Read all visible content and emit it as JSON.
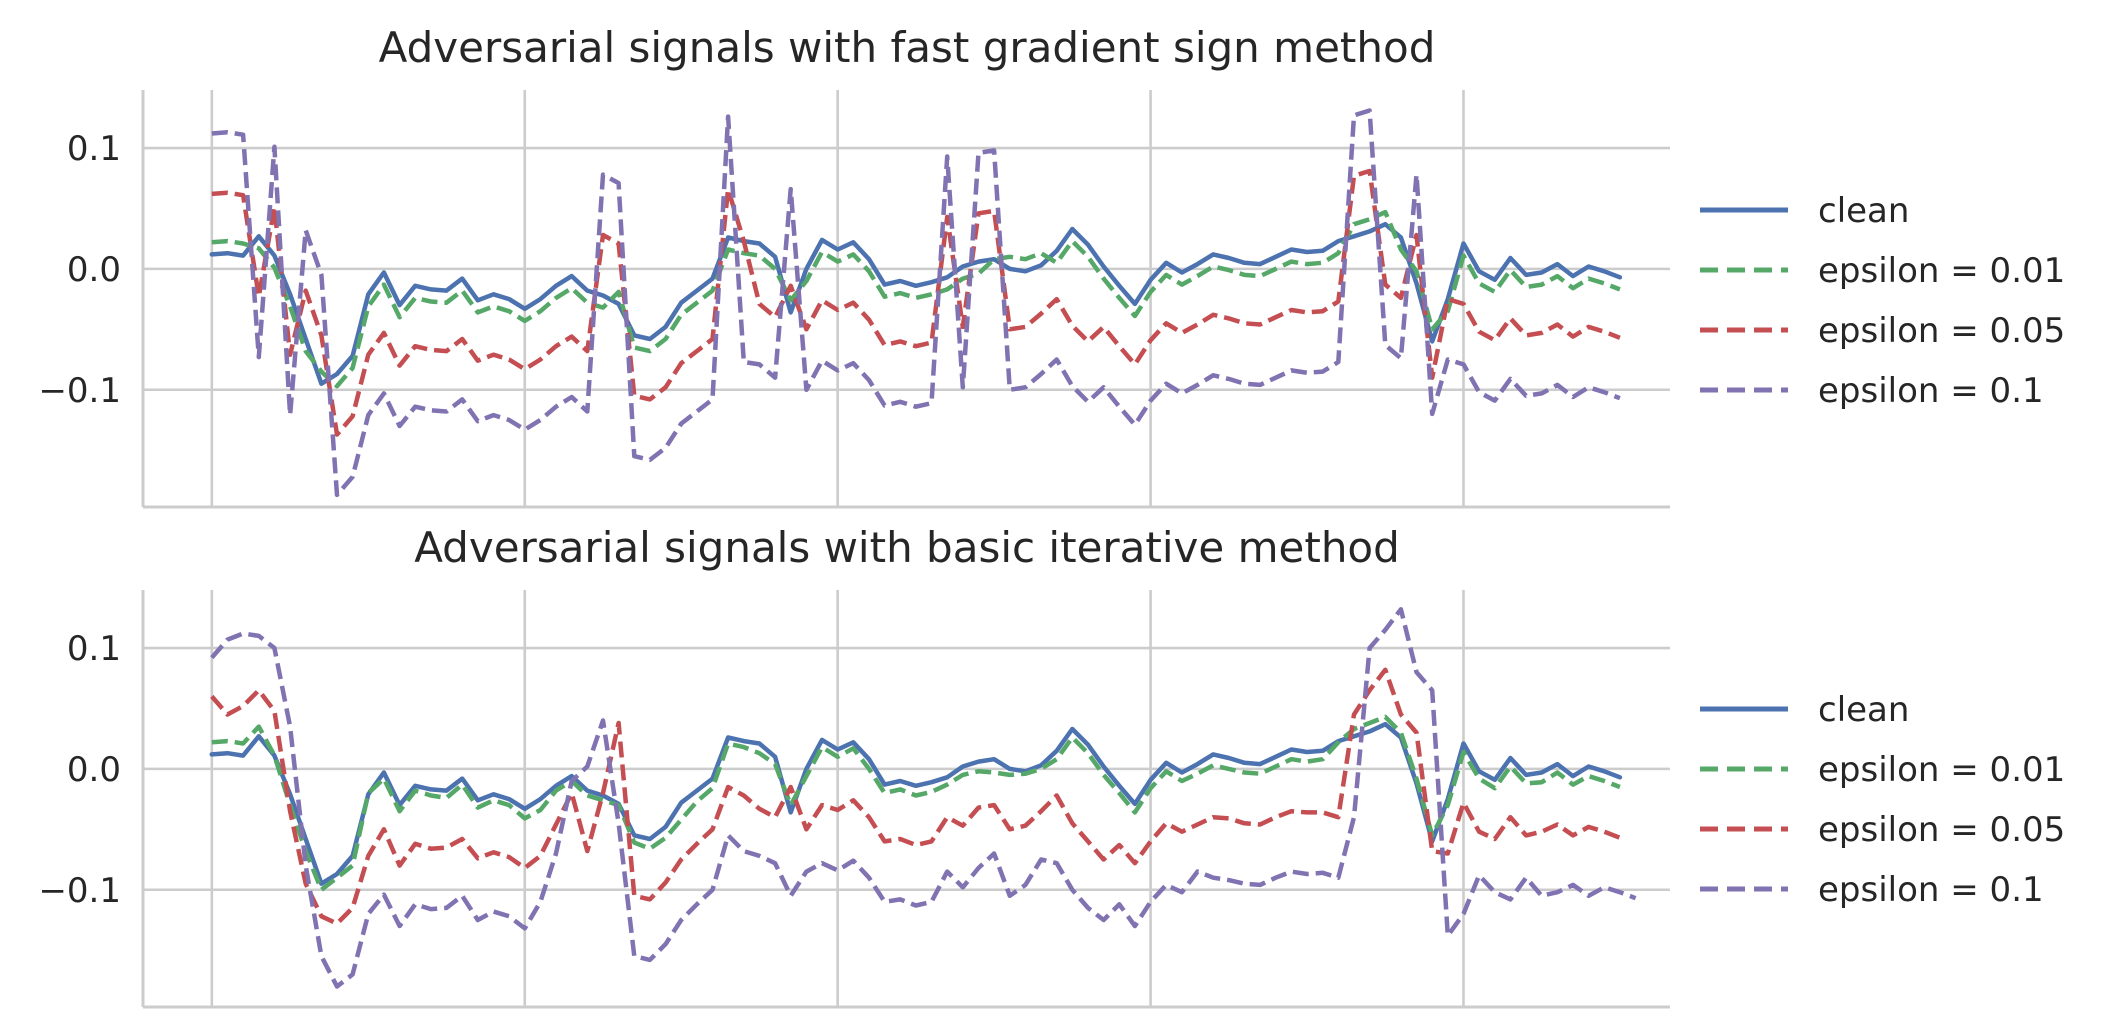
{
  "chart_data": [
    {
      "type": "line",
      "title": "Adversarial signals with fast gradient sign method",
      "xlabel": "",
      "ylabel": "",
      "xlim": [
        -2.2,
        46.6
      ],
      "ylim": [
        -0.197,
        0.148
      ],
      "grid": true,
      "xticks": [
        0,
        10,
        20,
        30,
        40
      ],
      "yticks": [
        -0.1,
        0.0,
        0.1
      ],
      "ytick_labels": [
        "−0.1",
        "0.0",
        "0.1"
      ],
      "legend_position": "center-right",
      "series": [
        {
          "name": "clean",
          "label": "clean",
          "color": "#4c72b0",
          "style": "solid",
          "values": [
            0.012,
            0.013,
            0.011,
            0.027,
            0.011,
            -0.021,
            -0.058,
            -0.095,
            -0.087,
            -0.072,
            -0.021,
            -0.003,
            -0.03,
            -0.014,
            -0.017,
            -0.018,
            -0.008,
            -0.026,
            -0.021,
            -0.025,
            -0.033,
            -0.025,
            -0.014,
            -0.006,
            -0.018,
            -0.022,
            -0.029,
            -0.055,
            -0.058,
            -0.048,
            -0.028,
            -0.018,
            -0.008,
            0.026,
            0.023,
            0.021,
            0.01,
            -0.036,
            0.0,
            0.024,
            0.016,
            0.022,
            0.008,
            -0.013,
            -0.01,
            -0.014,
            -0.011,
            -0.007,
            0.002,
            0.006,
            0.008,
            0.0,
            -0.002,
            0.003,
            0.015,
            0.033,
            0.02,
            0.002,
            -0.014,
            -0.029,
            -0.009,
            0.005,
            -0.003,
            0.004,
            0.012,
            0.009,
            0.005,
            0.004,
            0.01,
            0.016,
            0.014,
            0.015,
            0.023,
            0.027,
            0.031,
            0.037,
            0.026,
            -0.012,
            -0.06,
            -0.025,
            0.021,
            -0.002,
            -0.009,
            0.009,
            -0.005,
            -0.003,
            0.004,
            -0.006,
            0.002,
            -0.002,
            -0.007
          ]
        },
        {
          "name": "epsilon = 0.01",
          "label": "epsilon = 0.01",
          "color": "#55a868",
          "style": "dashed",
          "values": [
            0.022,
            0.023,
            0.021,
            0.017,
            0.001,
            -0.031,
            -0.068,
            -0.085,
            -0.097,
            -0.082,
            -0.031,
            -0.013,
            -0.04,
            -0.024,
            -0.027,
            -0.028,
            -0.018,
            -0.036,
            -0.031,
            -0.035,
            -0.043,
            -0.035,
            -0.024,
            -0.016,
            -0.028,
            -0.032,
            -0.019,
            -0.065,
            -0.068,
            -0.058,
            -0.038,
            -0.028,
            -0.018,
            0.016,
            0.013,
            0.011,
            0.0,
            -0.026,
            -0.01,
            0.014,
            0.006,
            0.012,
            -0.002,
            -0.023,
            -0.02,
            -0.024,
            -0.021,
            -0.017,
            -0.008,
            -0.004,
            0.008,
            0.01,
            0.008,
            0.013,
            0.005,
            0.023,
            0.01,
            -0.008,
            -0.024,
            -0.039,
            -0.019,
            -0.005,
            -0.013,
            -0.006,
            0.002,
            -0.001,
            -0.005,
            -0.006,
            0.0,
            0.006,
            0.004,
            0.005,
            0.013,
            0.037,
            0.041,
            0.047,
            0.016,
            -0.002,
            -0.05,
            -0.035,
            0.011,
            -0.012,
            -0.019,
            -0.001,
            -0.015,
            -0.013,
            -0.006,
            -0.016,
            -0.008,
            -0.012,
            -0.017
          ]
        },
        {
          "name": "epsilon = 0.05",
          "label": "epsilon = 0.05",
          "color": "#c44e52",
          "style": "dashed",
          "values": [
            0.062,
            0.063,
            0.061,
            -0.023,
            0.051,
            -0.071,
            -0.018,
            -0.055,
            -0.137,
            -0.122,
            -0.071,
            -0.053,
            -0.08,
            -0.064,
            -0.067,
            -0.068,
            -0.058,
            -0.076,
            -0.071,
            -0.075,
            -0.083,
            -0.075,
            -0.064,
            -0.056,
            -0.068,
            0.028,
            0.021,
            -0.105,
            -0.108,
            -0.098,
            -0.078,
            -0.068,
            -0.058,
            0.066,
            0.023,
            -0.029,
            -0.04,
            -0.014,
            -0.05,
            -0.026,
            -0.034,
            -0.028,
            -0.042,
            -0.063,
            -0.06,
            -0.064,
            -0.061,
            0.043,
            -0.048,
            0.046,
            0.048,
            -0.05,
            -0.048,
            -0.037,
            -0.025,
            -0.047,
            -0.06,
            -0.048,
            -0.064,
            -0.079,
            -0.059,
            -0.045,
            -0.053,
            -0.046,
            -0.038,
            -0.041,
            -0.045,
            -0.046,
            -0.04,
            -0.034,
            -0.036,
            -0.035,
            -0.027,
            0.077,
            0.081,
            -0.013,
            -0.024,
            0.028,
            -0.09,
            -0.025,
            -0.029,
            -0.052,
            -0.059,
            -0.041,
            -0.055,
            -0.053,
            -0.046,
            -0.056,
            -0.048,
            -0.052,
            -0.057
          ]
        },
        {
          "name": "epsilon = 0.1",
          "label": "epsilon = 0.1",
          "color": "#8172b2",
          "style": "dashed",
          "values": [
            0.112,
            0.113,
            0.111,
            -0.073,
            0.101,
            -0.121,
            0.032,
            -0.005,
            -0.187,
            -0.172,
            -0.121,
            -0.103,
            -0.13,
            -0.114,
            -0.117,
            -0.118,
            -0.108,
            -0.126,
            -0.121,
            -0.125,
            -0.133,
            -0.125,
            -0.114,
            -0.106,
            -0.118,
            0.078,
            0.071,
            -0.155,
            -0.158,
            -0.148,
            -0.128,
            -0.118,
            -0.108,
            0.126,
            -0.077,
            -0.079,
            -0.09,
            0.066,
            -0.1,
            -0.076,
            -0.084,
            -0.078,
            -0.092,
            -0.113,
            -0.11,
            -0.114,
            -0.111,
            0.093,
            -0.098,
            0.096,
            0.098,
            -0.1,
            -0.098,
            -0.087,
            -0.075,
            -0.097,
            -0.11,
            -0.098,
            -0.114,
            -0.129,
            -0.109,
            -0.095,
            -0.103,
            -0.096,
            -0.088,
            -0.091,
            -0.095,
            -0.096,
            -0.09,
            -0.084,
            -0.086,
            -0.085,
            -0.077,
            0.127,
            0.131,
            -0.063,
            -0.074,
            0.078,
            -0.12,
            -0.075,
            -0.079,
            -0.102,
            -0.109,
            -0.091,
            -0.105,
            -0.103,
            -0.096,
            -0.106,
            -0.098,
            -0.102,
            -0.107
          ]
        }
      ]
    },
    {
      "type": "line",
      "title": "Adversarial signals with basic iterative method",
      "xlabel": "",
      "ylabel": "",
      "xlim": [
        -2.2,
        46.6
      ],
      "ylim": [
        -0.197,
        0.148
      ],
      "grid": true,
      "xticks": [
        0,
        10,
        20,
        30,
        40
      ],
      "yticks": [
        -0.1,
        0.0,
        0.1
      ],
      "ytick_labels": [
        "−0.1",
        "0.0",
        "0.1"
      ],
      "legend_position": "center-right",
      "series": [
        {
          "name": "clean",
          "label": "clean",
          "color": "#4c72b0",
          "style": "solid",
          "values": [
            0.012,
            0.013,
            0.011,
            0.027,
            0.011,
            -0.021,
            -0.058,
            -0.095,
            -0.087,
            -0.072,
            -0.021,
            -0.003,
            -0.03,
            -0.014,
            -0.017,
            -0.018,
            -0.008,
            -0.026,
            -0.021,
            -0.025,
            -0.033,
            -0.025,
            -0.014,
            -0.006,
            -0.018,
            -0.022,
            -0.029,
            -0.055,
            -0.058,
            -0.048,
            -0.028,
            -0.018,
            -0.008,
            0.026,
            0.023,
            0.021,
            0.01,
            -0.036,
            0.0,
            0.024,
            0.016,
            0.022,
            0.008,
            -0.013,
            -0.01,
            -0.014,
            -0.011,
            -0.007,
            0.002,
            0.006,
            0.008,
            0.0,
            -0.002,
            0.003,
            0.015,
            0.033,
            0.02,
            0.002,
            -0.014,
            -0.029,
            -0.009,
            0.005,
            -0.003,
            0.004,
            0.012,
            0.009,
            0.005,
            0.004,
            0.01,
            0.016,
            0.014,
            0.015,
            0.023,
            0.027,
            0.031,
            0.037,
            0.026,
            -0.012,
            -0.06,
            -0.025,
            0.021,
            -0.002,
            -0.009,
            0.009,
            -0.005,
            -0.003,
            0.004,
            -0.006,
            0.002,
            -0.002,
            -0.007
          ]
        },
        {
          "name": "epsilon = 0.01",
          "label": "epsilon = 0.01",
          "color": "#55a868",
          "style": "dashed",
          "values": [
            0.022,
            0.023,
            0.021,
            0.035,
            0.011,
            -0.03,
            -0.068,
            -0.1,
            -0.09,
            -0.08,
            -0.02,
            -0.008,
            -0.035,
            -0.018,
            -0.022,
            -0.024,
            -0.013,
            -0.032,
            -0.026,
            -0.03,
            -0.041,
            -0.034,
            -0.018,
            -0.01,
            -0.022,
            -0.026,
            -0.03,
            -0.061,
            -0.066,
            -0.057,
            -0.042,
            -0.027,
            -0.016,
            0.021,
            0.018,
            0.013,
            0.004,
            -0.03,
            -0.006,
            0.018,
            0.01,
            0.017,
            0.0,
            -0.02,
            -0.017,
            -0.022,
            -0.019,
            -0.013,
            -0.005,
            -0.002,
            -0.003,
            -0.005,
            -0.004,
            0.0,
            0.008,
            0.026,
            0.013,
            -0.005,
            -0.02,
            -0.036,
            -0.016,
            -0.002,
            -0.01,
            -0.004,
            0.003,
            0.0,
            -0.003,
            -0.004,
            0.002,
            0.008,
            0.006,
            0.008,
            0.022,
            0.033,
            0.038,
            0.043,
            0.03,
            -0.008,
            -0.055,
            -0.03,
            0.014,
            -0.008,
            -0.016,
            0.002,
            -0.012,
            -0.011,
            -0.003,
            -0.013,
            -0.006,
            -0.01,
            -0.015
          ]
        },
        {
          "name": "epsilon = 0.05",
          "label": "epsilon = 0.05",
          "color": "#c44e52",
          "style": "dashed",
          "values": [
            0.06,
            0.045,
            0.052,
            0.065,
            0.048,
            -0.035,
            -0.095,
            -0.122,
            -0.128,
            -0.115,
            -0.072,
            -0.05,
            -0.08,
            -0.062,
            -0.066,
            -0.065,
            -0.058,
            -0.074,
            -0.069,
            -0.073,
            -0.082,
            -0.072,
            -0.046,
            -0.02,
            -0.068,
            -0.02,
            0.038,
            -0.105,
            -0.108,
            -0.094,
            -0.075,
            -0.062,
            -0.05,
            -0.015,
            -0.022,
            -0.033,
            -0.04,
            -0.015,
            -0.05,
            -0.03,
            -0.034,
            -0.026,
            -0.04,
            -0.06,
            -0.058,
            -0.063,
            -0.06,
            -0.04,
            -0.047,
            -0.032,
            -0.03,
            -0.05,
            -0.047,
            -0.035,
            -0.022,
            -0.045,
            -0.06,
            -0.075,
            -0.063,
            -0.078,
            -0.06,
            -0.045,
            -0.052,
            -0.046,
            -0.04,
            -0.041,
            -0.045,
            -0.046,
            -0.04,
            -0.035,
            -0.036,
            -0.036,
            -0.04,
            0.045,
            0.065,
            0.082,
            0.045,
            0.03,
            -0.068,
            -0.07,
            -0.028,
            -0.052,
            -0.058,
            -0.04,
            -0.055,
            -0.052,
            -0.046,
            -0.055,
            -0.048,
            -0.052,
            -0.057
          ]
        },
        {
          "name": "epsilon = 0.1",
          "label": "epsilon = 0.1",
          "color": "#8172b2",
          "style": "dashed",
          "values": [
            0.092,
            0.107,
            0.112,
            0.11,
            0.1,
            0.035,
            -0.08,
            -0.155,
            -0.18,
            -0.17,
            -0.12,
            -0.104,
            -0.13,
            -0.112,
            -0.116,
            -0.115,
            -0.105,
            -0.125,
            -0.118,
            -0.122,
            -0.132,
            -0.11,
            -0.07,
            -0.01,
            0.002,
            0.04,
            -0.045,
            -0.155,
            -0.158,
            -0.145,
            -0.125,
            -0.112,
            -0.1,
            -0.055,
            -0.068,
            -0.072,
            -0.078,
            -0.105,
            -0.085,
            -0.078,
            -0.084,
            -0.076,
            -0.09,
            -0.11,
            -0.108,
            -0.113,
            -0.11,
            -0.085,
            -0.098,
            -0.082,
            -0.07,
            -0.105,
            -0.096,
            -0.075,
            -0.078,
            -0.1,
            -0.115,
            -0.125,
            -0.112,
            -0.13,
            -0.11,
            -0.096,
            -0.102,
            -0.085,
            -0.09,
            -0.092,
            -0.095,
            -0.096,
            -0.09,
            -0.085,
            -0.087,
            -0.086,
            -0.09,
            -0.04,
            0.1,
            0.115,
            0.132,
            0.08,
            0.065,
            -0.138,
            -0.12,
            -0.088,
            -0.102,
            -0.108,
            -0.09,
            -0.105,
            -0.102,
            -0.096,
            -0.105,
            -0.098,
            -0.102,
            -0.107
          ]
        }
      ]
    }
  ]
}
